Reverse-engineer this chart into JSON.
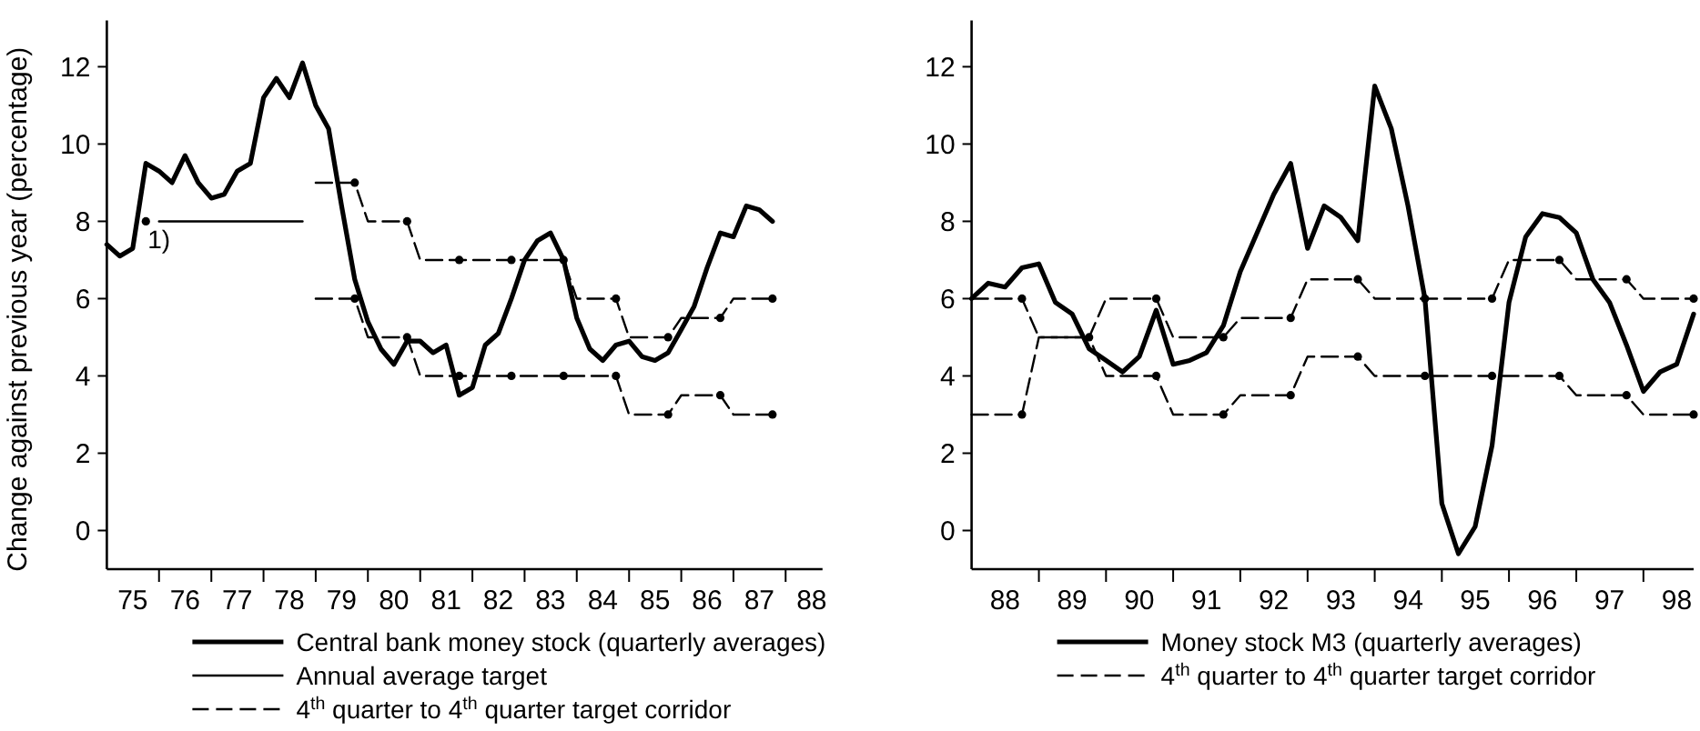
{
  "chart_data": [
    {
      "type": "line",
      "ylabel": "Change against previous  year (percentage)",
      "xlim": [
        "1975-01",
        "1988-09-15"
      ],
      "ylim": [
        -1,
        13.2
      ],
      "yticks": [
        0,
        2,
        4,
        6,
        8,
        10,
        12
      ],
      "xticks": [
        {
          "value": "1975-07",
          "label": "75"
        },
        {
          "value": "1976-01",
          "label": null
        },
        {
          "value": "1976-07",
          "label": "76"
        },
        {
          "value": "1977-01",
          "label": null
        },
        {
          "value": "1977-07",
          "label": "77"
        },
        {
          "value": "1978-01",
          "label": null
        },
        {
          "value": "1978-07",
          "label": "78"
        },
        {
          "value": "1979-01",
          "label": null
        },
        {
          "value": "1979-07",
          "label": "79"
        },
        {
          "value": "1980-01",
          "label": null
        },
        {
          "value": "1980-07",
          "label": "80"
        },
        {
          "value": "1981-01",
          "label": null
        },
        {
          "value": "1981-07",
          "label": "81"
        },
        {
          "value": "1982-01",
          "label": null
        },
        {
          "value": "1982-07",
          "label": "82"
        },
        {
          "value": "1983-01",
          "label": null
        },
        {
          "value": "1983-07",
          "label": "83"
        },
        {
          "value": "1984-01",
          "label": null
        },
        {
          "value": "1984-07",
          "label": "84"
        },
        {
          "value": "1985-01",
          "label": null
        },
        {
          "value": "1985-07",
          "label": "85"
        },
        {
          "value": "1986-01",
          "label": null
        },
        {
          "value": "1986-07",
          "label": "86"
        },
        {
          "value": "1987-01",
          "label": null
        },
        {
          "value": "1987-07",
          "label": "87"
        },
        {
          "value": "1988-01",
          "label": null
        },
        {
          "value": "1988-07",
          "label": "88"
        }
      ],
      "legend": "bottom",
      "annotations": [
        {
          "text": "1)",
          "x": "1975-10",
          "y": 8
        }
      ],
      "series": [
        {
          "name": "Central bank money stock (quarterly averages)",
          "type": "line",
          "line_style": "solid",
          "color": "#000000",
          "x": [
            "1975-01",
            "1975-04",
            "1975-07",
            "1975-10",
            "1976-01",
            "1976-04",
            "1976-07",
            "1976-10",
            "1977-01",
            "1977-04",
            "1977-07",
            "1977-10",
            "1978-01",
            "1978-04",
            "1978-07",
            "1978-10",
            "1979-01",
            "1979-04",
            "1979-07",
            "1979-10",
            "1980-01",
            "1980-04",
            "1980-07",
            "1980-10",
            "1981-01",
            "1981-04",
            "1981-07",
            "1981-10",
            "1982-01",
            "1982-04",
            "1982-07",
            "1982-10",
            "1983-01",
            "1983-04",
            "1983-07",
            "1983-10",
            "1984-01",
            "1984-04",
            "1984-07",
            "1984-10",
            "1985-01",
            "1985-04",
            "1985-07",
            "1985-10",
            "1986-01",
            "1986-04",
            "1986-07",
            "1986-10",
            "1987-01",
            "1987-04",
            "1987-07",
            "1987-10"
          ],
          "values": [
            7.4,
            7.1,
            7.3,
            9.5,
            9.3,
            9.0,
            9.7,
            9.0,
            8.6,
            8.7,
            9.3,
            9.5,
            11.2,
            11.7,
            11.2,
            12.1,
            11.0,
            10.4,
            8.4,
            6.5,
            5.4,
            4.7,
            4.3,
            4.9,
            4.9,
            4.6,
            4.8,
            3.5,
            3.7,
            4.8,
            5.1,
            6.0,
            7.0,
            7.5,
            7.7,
            7.0,
            5.5,
            4.7,
            4.4,
            4.8,
            4.9,
            4.5,
            4.4,
            4.6,
            5.2,
            5.8,
            6.8,
            7.7,
            7.6,
            8.4,
            8.3,
            8.0
          ]
        },
        {
          "name": "Annual average target",
          "type": "line",
          "line_style": "solid",
          "color": "#000000",
          "x": [
            "1976-01",
            "1978-10"
          ],
          "values": [
            8,
            8
          ]
        },
        {
          "name": "4$^{th}$ quarter to 4$^{th}$ quarter target corridor",
          "type": "line",
          "line_style": "dashed",
          "color": "#000000",
          "x": [
            "1979-01",
            "1979-10",
            "1980-01",
            "1980-10",
            "1981-01",
            "1981-10",
            "1982-10",
            "1983-10",
            "1984-01",
            "1984-10",
            "1985-01",
            "1985-10",
            "1986-01",
            "1986-10",
            "1987-01",
            "1987-10"
          ],
          "values": [
            9,
            9,
            8,
            8,
            7,
            7,
            7,
            7,
            6,
            6,
            5,
            5,
            5.5,
            5.5,
            6,
            6
          ]
        },
        {
          "type": "line",
          "line_style": "dashed",
          "color": "#000000",
          "x": [
            "1979-01",
            "1979-10",
            "1980-01",
            "1980-10",
            "1981-01",
            "1981-10",
            "1982-10",
            "1983-10",
            "1984-10",
            "1985-01",
            "1985-10",
            "1986-01",
            "1986-10",
            "1987-01",
            "1987-10"
          ],
          "values": [
            6,
            6,
            5,
            5,
            4,
            4,
            4,
            4,
            4,
            3,
            3,
            3.5,
            3.5,
            3,
            3
          ]
        },
        {
          "type": "scatter",
          "marker": "circle",
          "color": "#000000",
          "x": [
            "1975-10",
            "1979-10",
            "1980-10",
            "1981-10",
            "1982-10",
            "1983-10",
            "1984-10",
            "1985-10",
            "1986-10",
            "1987-10",
            "1979-10",
            "1980-10",
            "1981-10",
            "1982-10",
            "1983-10",
            "1984-10",
            "1985-10",
            "1986-10",
            "1987-10"
          ],
          "values": [
            8,
            9,
            8,
            7,
            7,
            7,
            6,
            5,
            5.5,
            6,
            6,
            5,
            4,
            4,
            4,
            4,
            3,
            3.5,
            3
          ]
        }
      ]
    },
    {
      "type": "line",
      "xlim": [
        "1988-01",
        "1998-10"
      ],
      "ylim": [
        -1,
        13.2
      ],
      "yticks": [
        0,
        2,
        4,
        6,
        8,
        10,
        12
      ],
      "xticks": [
        {
          "value": "1988-07",
          "label": "88"
        },
        {
          "value": "1989-01",
          "label": null
        },
        {
          "value": "1989-07",
          "label": "89"
        },
        {
          "value": "1990-01",
          "label": null
        },
        {
          "value": "1990-07",
          "label": "90"
        },
        {
          "value": "1991-01",
          "label": null
        },
        {
          "value": "1991-07",
          "label": "91"
        },
        {
          "value": "1992-01",
          "label": null
        },
        {
          "value": "1992-07",
          "label": "92"
        },
        {
          "value": "1993-01",
          "label": null
        },
        {
          "value": "1993-07",
          "label": "93"
        },
        {
          "value": "1994-01",
          "label": null
        },
        {
          "value": "1994-07",
          "label": "94"
        },
        {
          "value": "1995-01",
          "label": null
        },
        {
          "value": "1995-07",
          "label": "95"
        },
        {
          "value": "1996-01",
          "label": null
        },
        {
          "value": "1996-07",
          "label": "96"
        },
        {
          "value": "1997-01",
          "label": null
        },
        {
          "value": "1997-07",
          "label": "97"
        },
        {
          "value": "1998-01",
          "label": null
        },
        {
          "value": "1998-07",
          "label": "98"
        }
      ],
      "legend": "bottom",
      "series": [
        {
          "name": "Money stock M3 (quarterly averages)",
          "type": "line",
          "line_style": "solid",
          "color": "#000000",
          "x": [
            "1988-01",
            "1988-04",
            "1988-07",
            "1988-10",
            "1989-01",
            "1989-04",
            "1989-07",
            "1989-10",
            "1990-01",
            "1990-04",
            "1990-07",
            "1990-10",
            "1991-01",
            "1991-04",
            "1991-07",
            "1991-10",
            "1992-01",
            "1992-04",
            "1992-07",
            "1992-10",
            "1993-01",
            "1993-04",
            "1993-07",
            "1993-10",
            "1994-01",
            "1994-04",
            "1994-07",
            "1994-10",
            "1995-01",
            "1995-04",
            "1995-07",
            "1995-10",
            "1996-01",
            "1996-04",
            "1996-07",
            "1996-10",
            "1997-01",
            "1997-04",
            "1997-07",
            "1997-10",
            "1998-01",
            "1998-04",
            "1998-07",
            "1998-10"
          ],
          "values": [
            6.0,
            6.4,
            6.3,
            6.8,
            6.9,
            5.9,
            5.6,
            4.7,
            4.4,
            4.1,
            4.5,
            5.7,
            4.3,
            4.4,
            4.6,
            5.3,
            6.7,
            7.7,
            8.7,
            9.5,
            7.3,
            8.4,
            8.1,
            7.5,
            11.5,
            10.4,
            8.4,
            6.0,
            0.7,
            -0.6,
            0.1,
            2.2,
            5.9,
            7.6,
            8.2,
            8.1,
            7.7,
            6.5,
            5.9,
            4.8,
            3.6,
            4.1,
            4.3,
            5.6
          ]
        },
        {
          "name": "4$^{th}$ quarter to 4$^{th}$ quarter target corridor",
          "type": "line",
          "line_style": "dashed",
          "color": "#000000",
          "x": [
            "1988-01",
            "1988-10",
            "1989-01",
            "1989-10",
            "1990-01",
            "1990-10",
            "1991-01",
            "1991-10",
            "1992-01",
            "1992-10",
            "1993-01",
            "1993-10",
            "1994-01",
            "1994-10",
            "1995-10",
            "1996-01",
            "1996-10",
            "1997-01",
            "1997-10",
            "1998-01",
            "1998-10"
          ],
          "values": [
            6,
            6,
            5,
            5,
            6,
            6,
            5,
            5,
            5.5,
            5.5,
            6.5,
            6.5,
            6,
            6,
            6,
            7,
            7,
            6.5,
            6.5,
            6,
            6
          ]
        },
        {
          "type": "line",
          "line_style": "dashed",
          "color": "#000000",
          "x": [
            "1988-01",
            "1988-10",
            "1989-01",
            "1989-10",
            "1990-01",
            "1990-10",
            "1991-01",
            "1991-10",
            "1992-01",
            "1992-10",
            "1993-01",
            "1993-10",
            "1994-01",
            "1994-10",
            "1995-10",
            "1996-10",
            "1997-01",
            "1997-10",
            "1998-01",
            "1998-10"
          ],
          "values": [
            3,
            3,
            5,
            5,
            4,
            4,
            3,
            3,
            3.5,
            3.5,
            4.5,
            4.5,
            4,
            4,
            4,
            4,
            3.5,
            3.5,
            3,
            3
          ]
        },
        {
          "type": "scatter",
          "marker": "circle",
          "color": "#000000",
          "x": [
            "1988-10",
            "1989-10",
            "1990-10",
            "1991-10",
            "1992-10",
            "1993-10",
            "1994-10",
            "1995-10",
            "1996-10",
            "1997-10",
            "1998-10",
            "1988-10",
            "1990-10",
            "1991-10",
            "1992-10",
            "1993-10",
            "1994-10",
            "1995-10",
            "1996-10",
            "1997-10",
            "1998-10"
          ],
          "values": [
            6,
            5,
            6,
            5,
            5.5,
            6.5,
            6,
            6,
            7,
            6.5,
            6,
            3,
            4,
            3,
            3.5,
            4.5,
            4,
            4,
            4,
            3.5,
            3
          ]
        }
      ]
    }
  ]
}
